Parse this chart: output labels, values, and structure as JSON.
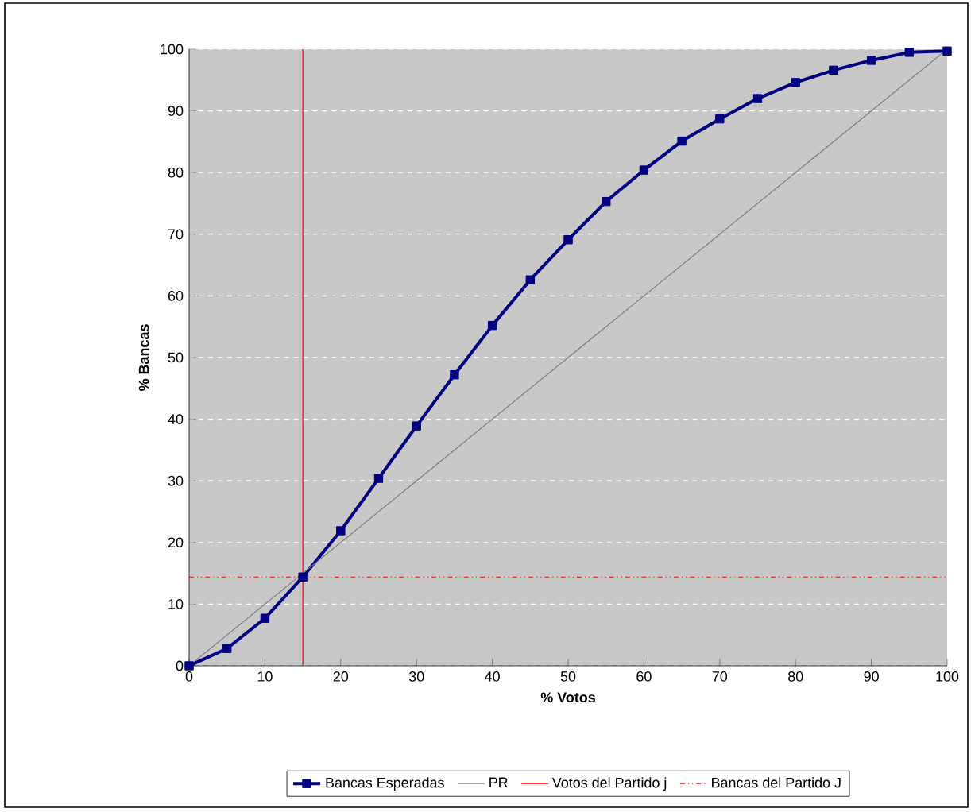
{
  "chart_data": {
    "type": "line",
    "xlabel": "% Votos",
    "ylabel": "% Bancas",
    "xlim": [
      0,
      100
    ],
    "ylim": [
      0,
      100
    ],
    "xticks": [
      0,
      10,
      20,
      30,
      40,
      50,
      60,
      70,
      80,
      90,
      100
    ],
    "yticks": [
      0,
      10,
      20,
      30,
      40,
      50,
      60,
      70,
      80,
      90,
      100
    ],
    "grid": "y",
    "legend": "bottom",
    "series": [
      {
        "name": "Bancas Esperadas",
        "color": "#000080",
        "marker": "square",
        "line_style": "solid",
        "x": [
          0,
          5,
          10,
          15,
          20,
          25,
          30,
          35,
          40,
          45,
          50,
          55,
          60,
          65,
          70,
          75,
          80,
          85,
          90,
          95,
          100
        ],
        "values": [
          0,
          2.8,
          7.7,
          14.4,
          21.9,
          30.4,
          38.9,
          47.2,
          55.2,
          62.6,
          69.1,
          75.3,
          80.4,
          85.1,
          88.7,
          92.0,
          94.6,
          96.6,
          98.2,
          99.5,
          99.7
        ]
      },
      {
        "name": "PR",
        "color": "#808080",
        "marker": "none",
        "line_style": "solid",
        "x": [
          0,
          100
        ],
        "values": [
          0,
          100
        ]
      },
      {
        "name": "Votos del Partido j",
        "color": "#ff0000",
        "marker": "none",
        "line_style": "solid",
        "x": [
          15,
          15
        ],
        "values": [
          0,
          100
        ]
      },
      {
        "name": "Bancas del Partido J",
        "color": "#ff0000",
        "marker": "none",
        "line_style": "dashdot",
        "x": [
          0,
          100
        ],
        "values": [
          14.4,
          14.4
        ]
      }
    ]
  }
}
